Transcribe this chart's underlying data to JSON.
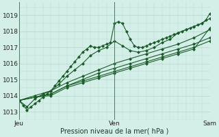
{
  "xlabel": "Pression niveau de la mer( hPa )",
  "bg_color": "#d4eee8",
  "grid_color": "#b0d8cc",
  "line_color": "#1a5c28",
  "xlim": [
    0,
    48
  ],
  "ylim": [
    1012.5,
    1019.8
  ],
  "yticks": [
    1013,
    1014,
    1015,
    1016,
    1017,
    1018,
    1019
  ],
  "xtick_labels": [
    "Jeu",
    "Ven",
    "Sam"
  ],
  "xtick_pos": [
    0,
    24,
    48
  ],
  "vlines": [
    0,
    24,
    48
  ],
  "series": [
    {
      "x": [
        0,
        1,
        2,
        3,
        4,
        5,
        6,
        7,
        8,
        9,
        10,
        11,
        12,
        13,
        14,
        15,
        16,
        17,
        18,
        19,
        20,
        21,
        22,
        23,
        24,
        25,
        26,
        27,
        28,
        29,
        30,
        31,
        32,
        33,
        34,
        35,
        36,
        37,
        38,
        39,
        40,
        41,
        42,
        43,
        44,
        45,
        46,
        47,
        48
      ],
      "y": [
        1013.7,
        1013.4,
        1013.1,
        1013.3,
        1013.5,
        1013.7,
        1013.9,
        1014.1,
        1014.3,
        1014.6,
        1014.9,
        1015.2,
        1015.5,
        1015.8,
        1016.1,
        1016.4,
        1016.7,
        1016.9,
        1017.1,
        1017.0,
        1017.0,
        1017.1,
        1017.2,
        1017.3,
        1018.5,
        1018.6,
        1018.5,
        1018.0,
        1017.5,
        1017.1,
        1017.0,
        1017.0,
        1017.1,
        1017.2,
        1017.3,
        1017.4,
        1017.5,
        1017.6,
        1017.7,
        1017.8,
        1017.9,
        1018.0,
        1018.1,
        1018.2,
        1018.3,
        1018.4,
        1018.5,
        1018.7,
        1019.1
      ]
    },
    {
      "x": [
        0,
        2,
        4,
        6,
        8,
        10,
        12,
        14,
        16,
        18,
        20,
        22,
        24,
        26,
        28,
        30,
        32,
        34,
        36,
        38,
        40,
        42,
        44,
        46,
        48
      ],
      "y": [
        1013.7,
        1013.3,
        1013.8,
        1014.1,
        1014.3,
        1014.7,
        1015.2,
        1015.6,
        1016.0,
        1016.5,
        1016.8,
        1017.0,
        1017.4,
        1017.1,
        1016.8,
        1016.7,
        1016.8,
        1017.0,
        1017.3,
        1017.5,
        1017.9,
        1018.1,
        1018.3,
        1018.5,
        1018.8
      ]
    },
    {
      "x": [
        0,
        4,
        8,
        12,
        16,
        20,
        24,
        28,
        32,
        36,
        40,
        44,
        48
      ],
      "y": [
        1013.7,
        1014.0,
        1014.3,
        1014.8,
        1015.2,
        1015.6,
        1016.0,
        1016.3,
        1016.6,
        1016.9,
        1017.2,
        1017.6,
        1018.1
      ]
    },
    {
      "x": [
        0,
        4,
        8,
        12,
        16,
        20,
        24,
        28,
        32,
        36,
        40,
        44,
        48
      ],
      "y": [
        1013.7,
        1013.9,
        1014.1,
        1014.6,
        1015.0,
        1015.4,
        1015.7,
        1016.0,
        1016.3,
        1016.6,
        1016.9,
        1017.2,
        1017.6
      ]
    },
    {
      "x": [
        0,
        4,
        8,
        12,
        16,
        20,
        24,
        28,
        32,
        36,
        40,
        44,
        48
      ],
      "y": [
        1013.7,
        1013.9,
        1014.1,
        1014.6,
        1014.9,
        1015.2,
        1015.5,
        1015.8,
        1016.1,
        1016.4,
        1016.7,
        1017.0,
        1017.4
      ]
    },
    {
      "x": [
        0,
        4,
        8,
        12,
        16,
        20,
        24,
        28,
        32,
        36,
        40,
        44,
        48
      ],
      "y": [
        1013.7,
        1013.9,
        1014.0,
        1014.5,
        1014.8,
        1015.1,
        1015.4,
        1015.7,
        1016.0,
        1016.3,
        1016.6,
        1016.9,
        1018.2
      ]
    }
  ]
}
